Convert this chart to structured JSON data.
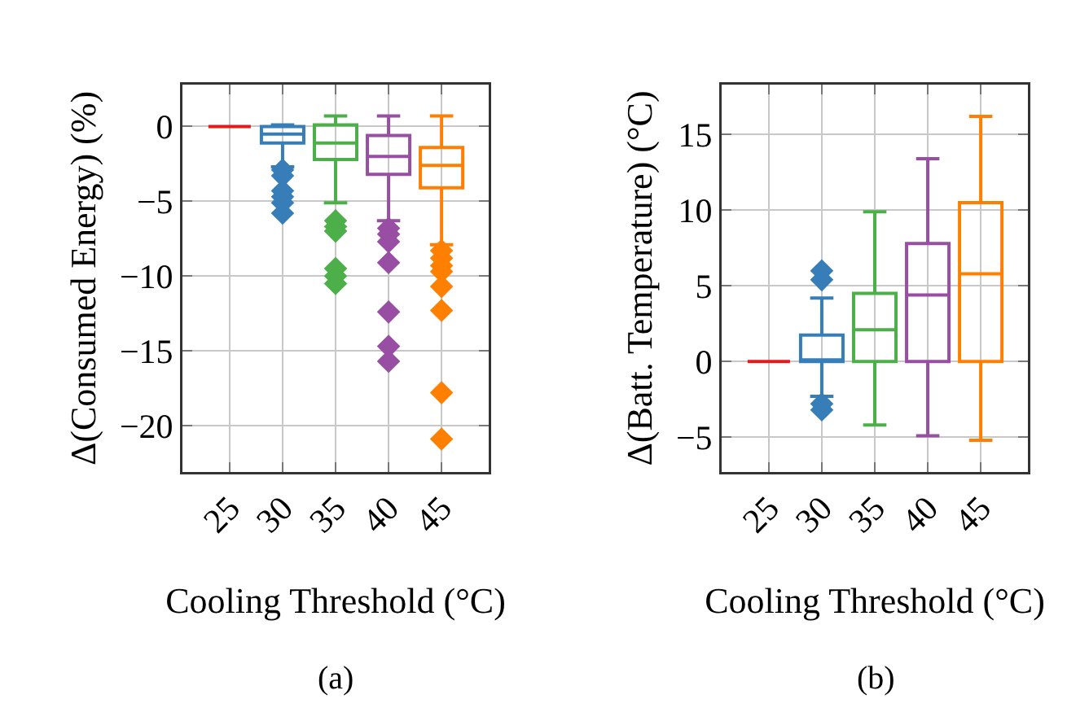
{
  "chart_data": [
    {
      "type": "box",
      "categories": [
        "25",
        "30",
        "35",
        "40",
        "45"
      ],
      "xlabel": "Cooling Threshold (°C)",
      "ylabel": "Δ(Consumed Energy) (%)",
      "annotations": [
        "(a)"
      ],
      "ylim": [
        -23.1,
        2.8
      ],
      "yticks": [
        0,
        -5,
        -10,
        -15,
        -20
      ],
      "grid": true,
      "marker": "diamond",
      "colors": [
        "#e41a1c",
        "#377eb8",
        "#4daf4a",
        "#984ea3",
        "#ff7f00"
      ],
      "boxes": [
        {
          "low": 0,
          "q1": 0,
          "median": 0,
          "q3": 0,
          "high": 0
        },
        {
          "low": -2.7,
          "q1": -1.1,
          "median": -0.5,
          "q3": 0,
          "high": 0.1,
          "outliers": [
            -2.9,
            -3.3,
            -4.3,
            -4.7,
            -5.1,
            -5.8
          ]
        },
        {
          "low": -5.1,
          "q1": -2.2,
          "median": -1.1,
          "q3": 0.1,
          "high": 0.7,
          "outliers": [
            -6.3,
            -6.7,
            -7.0,
            -9.5,
            -10.0,
            -10.5
          ]
        },
        {
          "low": -6.3,
          "q1": -3.2,
          "median": -2.0,
          "q3": -0.6,
          "high": 0.7,
          "outliers": [
            -6.8,
            -7.2,
            -7.7,
            -9.1,
            -12.4,
            -14.7,
            -15.7
          ]
        },
        {
          "low": -7.9,
          "q1": -4.1,
          "median": -2.6,
          "q3": -1.4,
          "high": 0.7,
          "outliers": [
            -8.3,
            -8.8,
            -9.3,
            -9.7,
            -10.7,
            -12.3,
            -17.8,
            -20.9
          ]
        }
      ]
    },
    {
      "type": "box",
      "categories": [
        "25",
        "30",
        "35",
        "40",
        "45"
      ],
      "xlabel": "Cooling Threshold (°C)",
      "ylabel": "Δ(Batt. Temperature) (°C)",
      "annotations": [
        "(b)"
      ],
      "ylim": [
        -7.3,
        18.3
      ],
      "yticks": [
        -5,
        0,
        5,
        10,
        15
      ],
      "grid": true,
      "marker": "diamond",
      "colors": [
        "#e41a1c",
        "#377eb8",
        "#4daf4a",
        "#984ea3",
        "#ff7f00"
      ],
      "boxes": [
        {
          "low": 0,
          "q1": 0,
          "median": 0,
          "q3": 0,
          "high": 0
        },
        {
          "low": -2.3,
          "q1": 0,
          "median": 0,
          "q3": 1.75,
          "high": 4.2,
          "outliers": [
            5.4,
            6.0,
            -2.8,
            -3.2
          ]
        },
        {
          "low": -4.2,
          "q1": 0,
          "median": 2.1,
          "q3": 4.5,
          "high": 9.9
        },
        {
          "low": -4.9,
          "q1": 0,
          "median": 4.4,
          "q3": 7.8,
          "high": 13.4
        },
        {
          "low": -5.2,
          "q1": 0,
          "median": 5.8,
          "q3": 10.5,
          "high": 16.2
        }
      ]
    }
  ]
}
